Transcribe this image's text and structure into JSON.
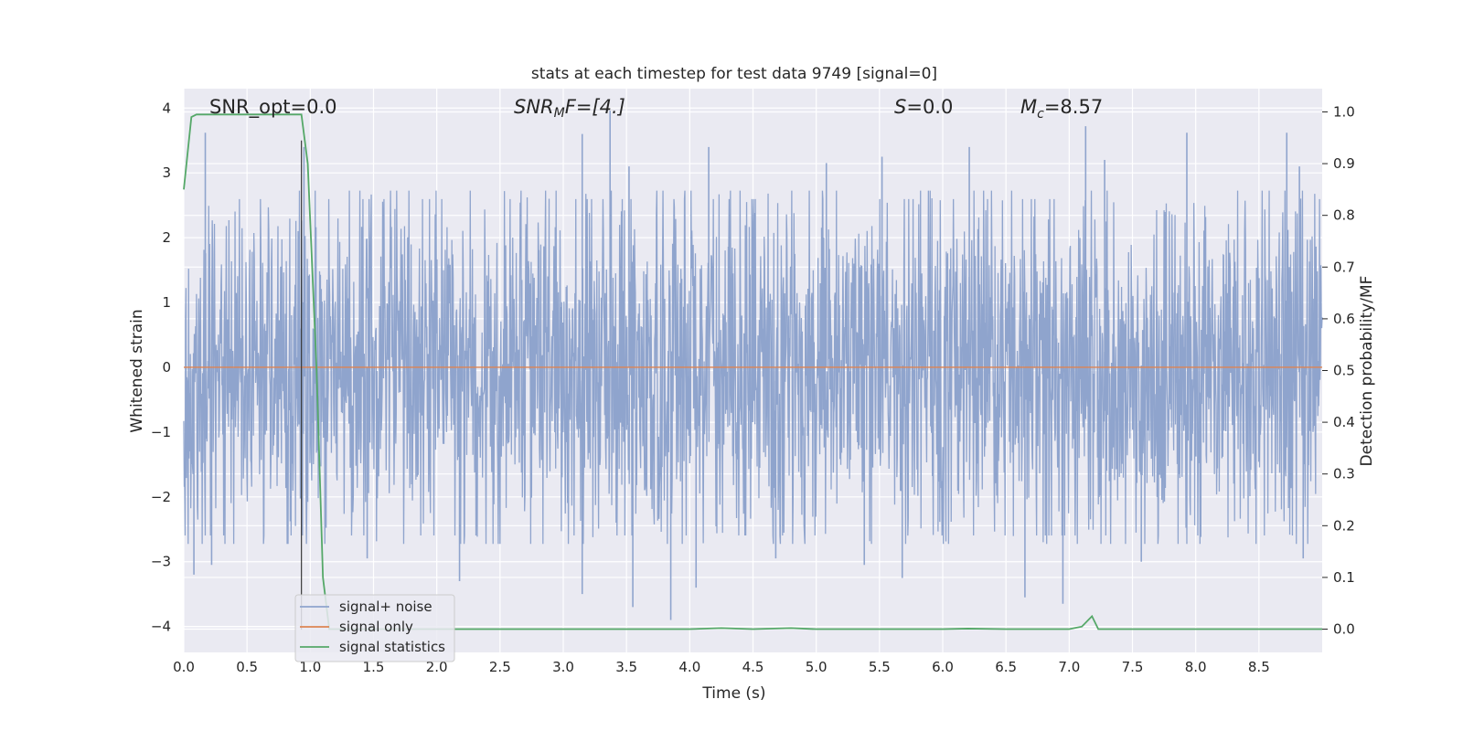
{
  "chart_data": {
    "type": "line",
    "title": "stats at each timestep for test data 9749 [signal=0]",
    "xlabel": "Time (s)",
    "ylabel_left": "Whitened strain",
    "ylabel_right": "Detection probability/MF",
    "xlim": [
      0.0,
      9.0
    ],
    "ylim_left": [
      -4.4,
      4.3
    ],
    "ylim_right": [
      -0.045,
      1.045
    ],
    "xticks": [
      "0.0",
      "0.5",
      "1.0",
      "1.5",
      "2.0",
      "2.5",
      "3.0",
      "3.5",
      "4.0",
      "4.5",
      "5.0",
      "5.5",
      "6.0",
      "6.5",
      "7.0",
      "7.5",
      "8.0",
      "8.5"
    ],
    "yticks_left": [
      "−4",
      "−3",
      "−2",
      "−1",
      "0",
      "1",
      "2",
      "3",
      "4"
    ],
    "yticks_right": [
      "0.0",
      "0.1",
      "0.2",
      "0.3",
      "0.4",
      "0.5",
      "0.6",
      "0.7",
      "0.8",
      "0.9",
      "1.0"
    ],
    "grid": true,
    "legend_position": "lower-left",
    "annotations": {
      "snr_opt": "SNR_opt=0.0",
      "snr_mf_main": "SNR",
      "snr_mf_sub": "M",
      "snr_mf_tail": "F=[4.]",
      "s_main": "S",
      "s_tail": "=0.0",
      "mc_main": "M",
      "mc_sub": "c",
      "mc_tail": "=8.57"
    },
    "vertical_marker_x": 0.93,
    "series": [
      {
        "name": "signal+ noise",
        "axis": "left",
        "color": "#8fa4cd",
        "description_stats": {
          "envelope_typical": 2.2,
          "peak_max": 3.96,
          "peak_min": -4.0
        },
        "peaks_high": [
          [
            0.17,
            3.62
          ],
          [
            0.95,
            3.4
          ],
          [
            3.15,
            3.6
          ],
          [
            3.37,
            3.96
          ],
          [
            3.52,
            3.1
          ],
          [
            4.15,
            3.4
          ],
          [
            5.08,
            3.15
          ],
          [
            5.52,
            3.25
          ],
          [
            6.21,
            3.4
          ],
          [
            7.13,
            3.72
          ],
          [
            7.28,
            3.2
          ],
          [
            7.93,
            3.62
          ],
          [
            8.72,
            3.62
          ],
          [
            8.82,
            3.1
          ]
        ],
        "peaks_low": [
          [
            0.08,
            -3.2
          ],
          [
            0.22,
            -3.05
          ],
          [
            1.45,
            -2.95
          ],
          [
            2.18,
            -3.3
          ],
          [
            3.15,
            -3.5
          ],
          [
            3.55,
            -3.7
          ],
          [
            3.85,
            -3.9
          ],
          [
            4.05,
            -3.4
          ],
          [
            4.68,
            -2.95
          ],
          [
            5.38,
            -3.05
          ],
          [
            5.68,
            -3.25
          ],
          [
            6.65,
            -3.55
          ],
          [
            6.95,
            -3.65
          ],
          [
            7.57,
            -3.0
          ],
          [
            8.85,
            -2.95
          ]
        ]
      },
      {
        "name": "signal only",
        "axis": "left",
        "color": "#dd8452",
        "x": [
          0.0,
          9.0
        ],
        "y": [
          0.0,
          0.0
        ]
      },
      {
        "name": "signal statistics",
        "axis": "right",
        "color": "#55a868",
        "x": [
          0.0,
          0.06,
          0.1,
          0.2,
          0.5,
          0.93,
          0.98,
          1.05,
          1.1,
          1.15,
          1.3,
          2.0,
          3.0,
          4.0,
          4.25,
          4.5,
          4.8,
          5.0,
          6.0,
          6.2,
          6.5,
          7.0,
          7.1,
          7.18,
          7.23,
          7.4,
          8.0,
          9.0
        ],
        "y": [
          0.85,
          0.99,
          0.995,
          0.995,
          0.995,
          0.995,
          0.9,
          0.5,
          0.1,
          0.0,
          0.0,
          0.0,
          0.0,
          0.0,
          0.002,
          0.0,
          0.002,
          0.0,
          0.0,
          0.001,
          0.0,
          0.0,
          0.005,
          0.025,
          0.0,
          0.0,
          0.0,
          0.0
        ]
      }
    ]
  }
}
